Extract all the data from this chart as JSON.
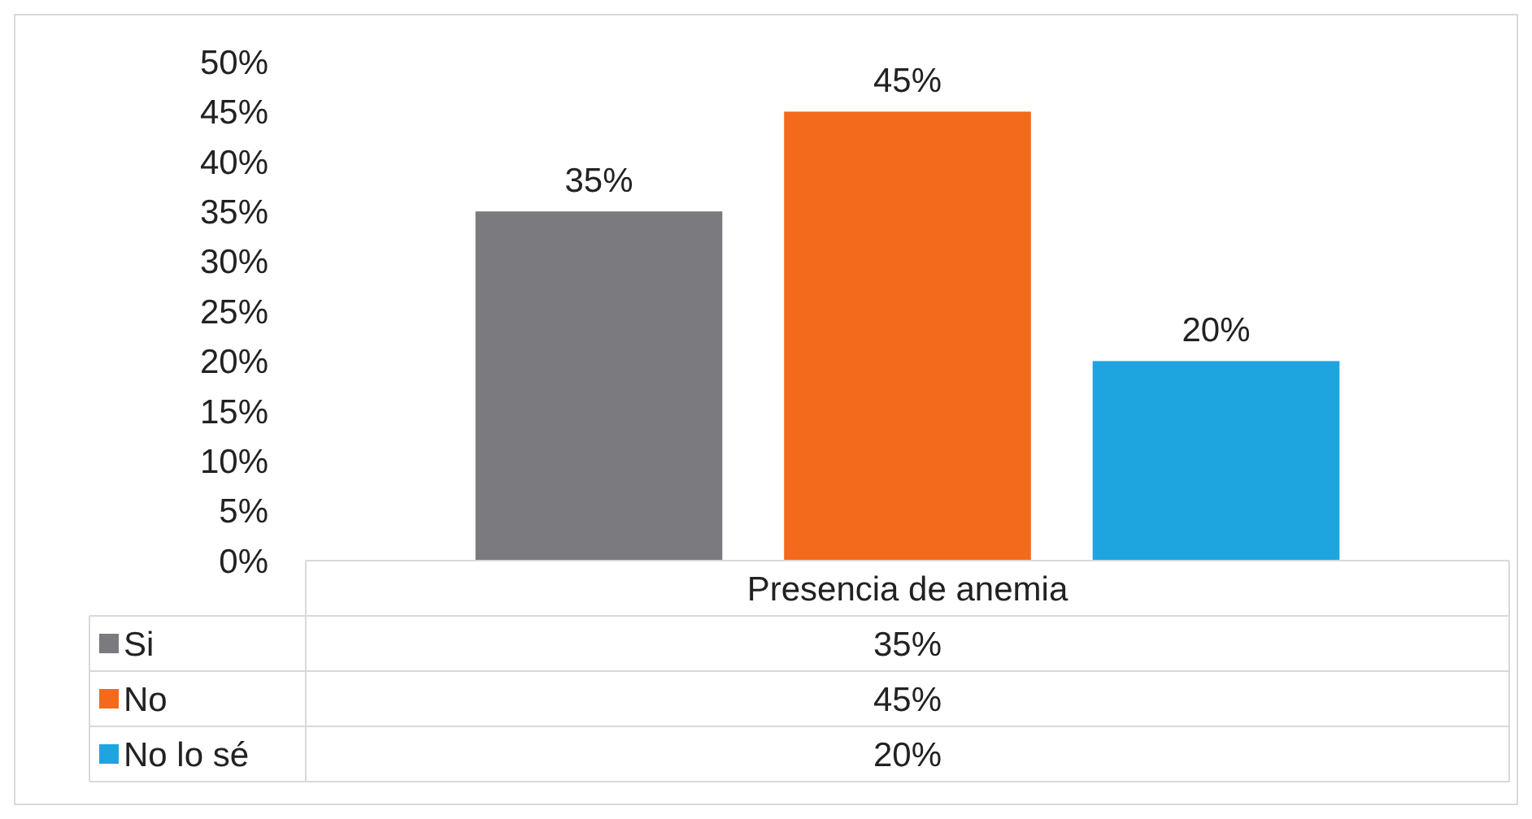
{
  "chart_data": {
    "type": "bar",
    "categories": [
      "Presencia de anemia"
    ],
    "series": [
      {
        "name": "Si",
        "color": "#7a7a7f",
        "values": [
          35
        ],
        "value_labels": [
          "35%"
        ]
      },
      {
        "name": "No",
        "color": "#f36a1c",
        "values": [
          45
        ],
        "value_labels": [
          "45%"
        ]
      },
      {
        "name": "No lo sé",
        "color": "#1ea5df",
        "values": [
          20
        ],
        "value_labels": [
          "20%"
        ]
      }
    ],
    "ylim": [
      0,
      50
    ],
    "yticks": [
      {
        "value": 0,
        "label": "0%"
      },
      {
        "value": 5,
        "label": "5%"
      },
      {
        "value": 10,
        "label": "10%"
      },
      {
        "value": 15,
        "label": "15%"
      },
      {
        "value": 20,
        "label": "20%"
      },
      {
        "value": 25,
        "label": "25%"
      },
      {
        "value": 30,
        "label": "30%"
      },
      {
        "value": 35,
        "label": "35%"
      },
      {
        "value": 40,
        "label": "40%"
      },
      {
        "value": 45,
        "label": "45%"
      },
      {
        "value": 50,
        "label": "50%"
      }
    ],
    "grid": false,
    "legend": "bottom"
  }
}
